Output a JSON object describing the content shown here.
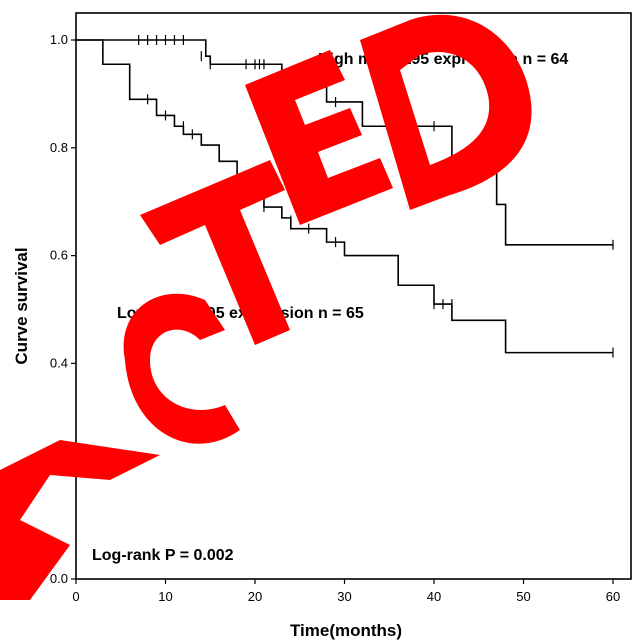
{
  "chart_data": {
    "type": "line",
    "title": "",
    "xlabel": "Time(months)",
    "ylabel": "Curve survival",
    "xlim": [
      0,
      60
    ],
    "ylim": [
      0,
      1.0
    ],
    "x_ticks": [
      "0",
      "10",
      "20",
      "30",
      "40",
      "50",
      "60"
    ],
    "y_ticks": [
      "0.0",
      "0.2",
      "0.4",
      "0.6",
      "0.8",
      "1.0"
    ],
    "grid": false,
    "series": [
      {
        "name": "High miR-3195 expression n = 64",
        "label_text": "High miR-3195 expression n = 64",
        "steps": [
          [
            0,
            1.0
          ],
          [
            14.5,
            0.97
          ],
          [
            15,
            0.955
          ],
          [
            23,
            0.92
          ],
          [
            28,
            0.885
          ],
          [
            32,
            0.84
          ],
          [
            35,
            0.84
          ],
          [
            42,
            0.775
          ],
          [
            47,
            0.695
          ],
          [
            48,
            0.62
          ],
          [
            60,
            0.62
          ]
        ],
        "censored": [
          [
            7,
            1.0
          ],
          [
            8,
            1.0
          ],
          [
            9,
            1.0
          ],
          [
            10,
            1.0
          ],
          [
            11,
            1.0
          ],
          [
            12,
            1.0
          ],
          [
            14,
            0.97
          ],
          [
            15,
            0.955
          ],
          [
            19,
            0.955
          ],
          [
            20,
            0.955
          ],
          [
            20.5,
            0.955
          ],
          [
            21,
            0.955
          ],
          [
            29,
            0.885
          ],
          [
            35,
            0.84
          ],
          [
            40,
            0.84
          ],
          [
            60,
            0.62
          ]
        ]
      },
      {
        "name": "Low miR-3195 expression n = 65",
        "label_text": "Low miR-3195 expression n = 65",
        "steps": [
          [
            0,
            1.0
          ],
          [
            3,
            0.955
          ],
          [
            6,
            0.89
          ],
          [
            9,
            0.86
          ],
          [
            11,
            0.84
          ],
          [
            12,
            0.825
          ],
          [
            14,
            0.805
          ],
          [
            16,
            0.775
          ],
          [
            18,
            0.73
          ],
          [
            19,
            0.72
          ],
          [
            20,
            0.71
          ],
          [
            21,
            0.69
          ],
          [
            23,
            0.67
          ],
          [
            24,
            0.65
          ],
          [
            28,
            0.625
          ],
          [
            30,
            0.6
          ],
          [
            36,
            0.545
          ],
          [
            40,
            0.51
          ],
          [
            42,
            0.48
          ],
          [
            48,
            0.42
          ],
          [
            60,
            0.42
          ]
        ],
        "censored": [
          [
            8,
            0.89
          ],
          [
            10,
            0.86
          ],
          [
            12,
            0.84
          ],
          [
            13,
            0.825
          ],
          [
            18,
            0.73
          ],
          [
            19,
            0.73
          ],
          [
            20,
            0.71
          ],
          [
            21,
            0.69
          ],
          [
            24,
            0.665
          ],
          [
            26,
            0.65
          ],
          [
            29,
            0.625
          ],
          [
            40,
            0.51
          ],
          [
            41,
            0.51
          ],
          [
            42,
            0.51
          ],
          [
            60,
            0.42
          ]
        ]
      }
    ],
    "annotations": [
      {
        "text": "Log-rank P = 0.002"
      }
    ]
  },
  "redaction_watermark": "REDACTED"
}
